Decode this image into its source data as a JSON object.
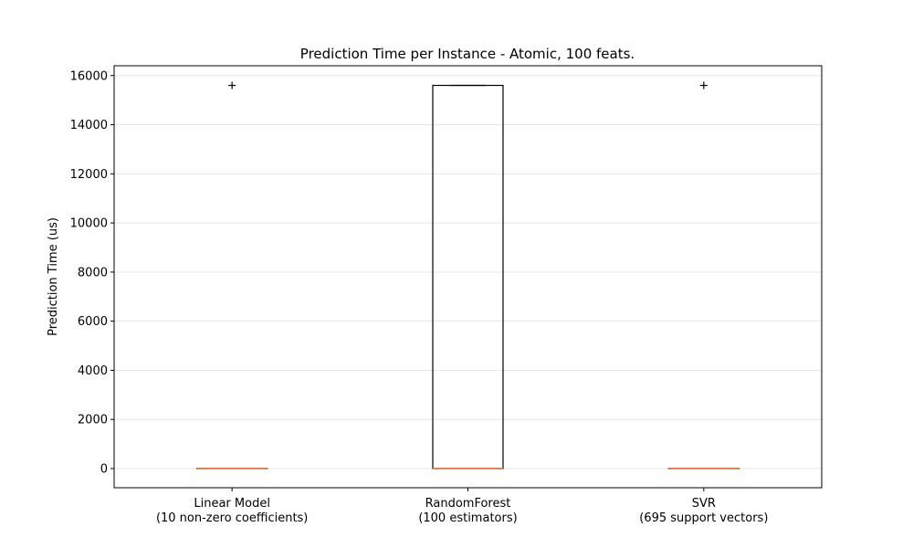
{
  "chart_data": {
    "type": "box",
    "title": "Prediction Time per Instance - Atomic, 100 feats.",
    "xlabel": "",
    "ylabel": "Prediction Time (us)",
    "ylim": [
      -780,
      16400
    ],
    "yticks": [
      0,
      2000,
      4000,
      6000,
      8000,
      10000,
      12000,
      14000,
      16000
    ],
    "grid": "y",
    "colors": {
      "box": "#000000",
      "median": "#dd8452",
      "grid": "#e6e6e6",
      "flier": "#000000"
    },
    "boxes": [
      {
        "label_line1": "Linear Model",
        "label_line2": "(10 non-zero coefficients)",
        "whisker_low": 0,
        "q1": 0,
        "median": 0,
        "q3": 0,
        "whisker_high": 0,
        "fliers": [
          15600
        ]
      },
      {
        "label_line1": "RandomForest",
        "label_line2": "(100 estimators)",
        "whisker_low": 0,
        "q1": 0,
        "median": 0,
        "q3": 15600,
        "whisker_high": 15600,
        "fliers": []
      },
      {
        "label_line1": "SVR",
        "label_line2": "(695 support vectors)",
        "whisker_low": 0,
        "q1": 0,
        "median": 0,
        "q3": 0,
        "whisker_high": 0,
        "fliers": [
          15600
        ]
      }
    ]
  }
}
